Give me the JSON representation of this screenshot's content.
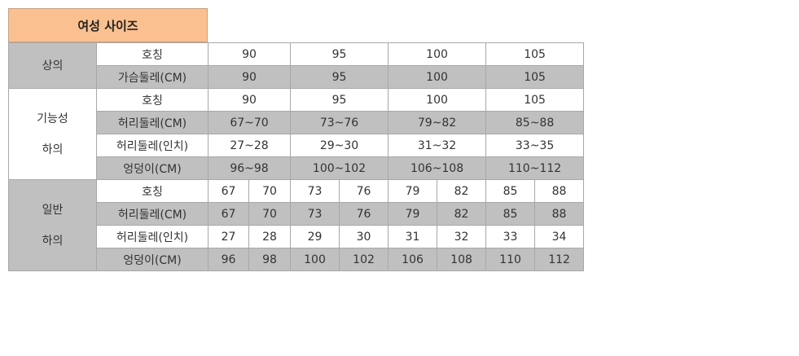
{
  "title": "여성 사이즈",
  "colors": {
    "title_bg": "#FAC090",
    "shade": "#C0C0C0"
  },
  "sections": [
    {
      "label": [
        "상의"
      ],
      "rows": [
        {
          "label": "호칭",
          "values": [
            "90",
            "95",
            "100",
            "105"
          ]
        },
        {
          "label": "가슴둘레(CM)",
          "values": [
            "90",
            "95",
            "100",
            "105"
          ]
        }
      ]
    },
    {
      "label": [
        "기능성",
        "하의"
      ],
      "rows": [
        {
          "label": "호칭",
          "values": [
            "90",
            "95",
            "100",
            "105"
          ]
        },
        {
          "label": "허리둘레(CM)",
          "values": [
            "67~70",
            "73~76",
            "79~82",
            "85~88"
          ]
        },
        {
          "label": "허리둘레(인치)",
          "values": [
            "27~28",
            "29~30",
            "31~32",
            "33~35"
          ]
        },
        {
          "label": "엉덩이(CM)",
          "values": [
            "96~98",
            "100~102",
            "106~108",
            "110~112"
          ]
        }
      ]
    },
    {
      "label": [
        "일반",
        "하의"
      ],
      "rows": [
        {
          "label": "호칭",
          "values": [
            "67",
            "70",
            "73",
            "76",
            "79",
            "82",
            "85",
            "88"
          ]
        },
        {
          "label": "허리둘레(CM)",
          "values": [
            "67",
            "70",
            "73",
            "76",
            "79",
            "82",
            "85",
            "88"
          ]
        },
        {
          "label": "허리둘레(인치)",
          "values": [
            "27",
            "28",
            "29",
            "30",
            "31",
            "32",
            "33",
            "34"
          ]
        },
        {
          "label": "엉덩이(CM)",
          "values": [
            "96",
            "98",
            "100",
            "102",
            "106",
            "108",
            "110",
            "112"
          ]
        }
      ]
    }
  ]
}
